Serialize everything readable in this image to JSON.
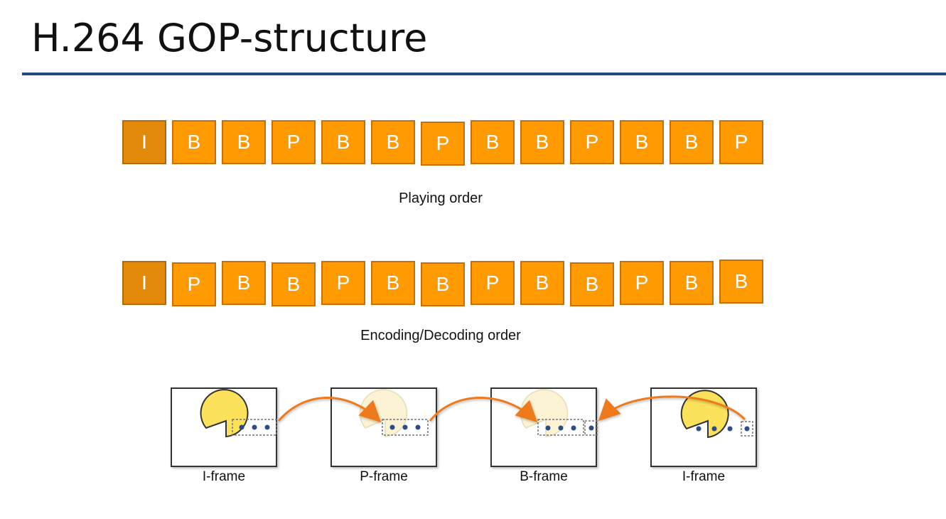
{
  "title": "H.264 GOP-structure",
  "playing_order": {
    "frames": [
      "I",
      "B",
      "B",
      "P",
      "B",
      "B",
      "P",
      "B",
      "B",
      "P",
      "B",
      "B",
      "P"
    ],
    "caption": "Playing order"
  },
  "encoding_order": {
    "frames": [
      "I",
      "P",
      "B",
      "B",
      "P",
      "B",
      "B",
      "P",
      "B",
      "B",
      "P",
      "B",
      "B"
    ],
    "caption": "Encoding/Decoding order"
  },
  "frame_types": {
    "items": [
      {
        "label": "I-frame"
      },
      {
        "label": "P-frame"
      },
      {
        "label": "B-frame"
      },
      {
        "label": "I-frame"
      }
    ]
  },
  "colors": {
    "frame_fill": "#ff9a00",
    "iframe_fill": "#e38a0a",
    "pacman": "#fbe25a",
    "pacman_faded": "#fbf3d4",
    "arrow": "#ee7a1e",
    "dot": "#2c4c86",
    "rule": "#244a7c"
  }
}
